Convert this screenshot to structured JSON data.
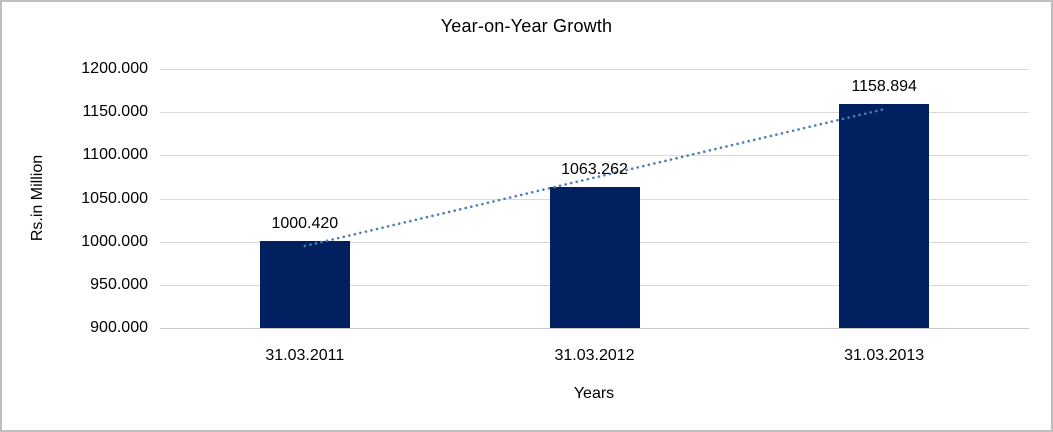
{
  "chart_data": {
    "type": "bar",
    "title": "Year-on-Year Growth",
    "xlabel": "Years",
    "ylabel": "Rs.in Million",
    "categories": [
      "31.03.2011",
      "31.03.2012",
      "31.03.2013"
    ],
    "values": [
      1000.42,
      1063.262,
      1158.894
    ],
    "data_labels": [
      "1000.420",
      "1063.262",
      "1158.894"
    ],
    "y_ticks": [
      {
        "label": "1200.000",
        "value": 1200
      },
      {
        "label": "1150.000",
        "value": 1150
      },
      {
        "label": "1100.000",
        "value": 1100
      },
      {
        "label": "1050.000",
        "value": 1050
      },
      {
        "label": "1000.000",
        "value": 1000
      },
      {
        "label": "950.000",
        "value": 950
      },
      {
        "label": "900.000",
        "value": 900
      }
    ],
    "ylim": [
      900,
      1200
    ],
    "grid": true,
    "legend_position": "none",
    "trendline": {
      "type": "linear",
      "style": "dotted"
    },
    "colors": {
      "bar": "#002060",
      "trendline": "#4a7ebb",
      "gridline": "#d9d9d9",
      "axis_line": "#c9c9c9",
      "text": "#000000",
      "border": "#bfbfbf",
      "background": "#ffffff"
    }
  }
}
